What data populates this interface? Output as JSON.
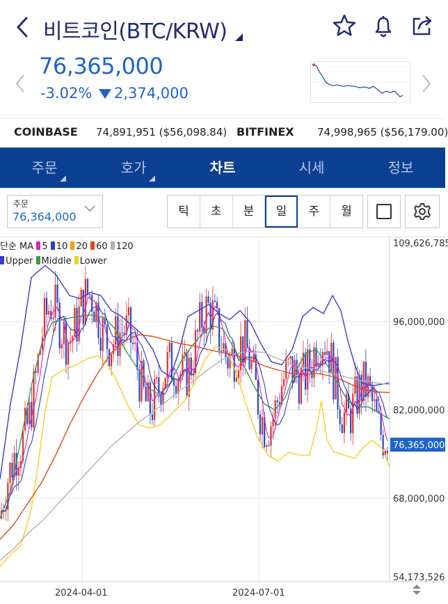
{
  "header": {
    "title": "비트코인(BTC/KRW)",
    "price": "76,365,000",
    "change_pct": "-3.02%",
    "change_amt": "2,374,000"
  },
  "exchanges": [
    {
      "name": "COINBASE",
      "value": "74,891,951 ($56,098.84)"
    },
    {
      "name": "BITFINEX",
      "value": "74,998,965 ($56,179.00)"
    }
  ],
  "tabs": [
    {
      "label": "주문",
      "active": false
    },
    {
      "label": "호가",
      "active": false
    },
    {
      "label": "차트",
      "active": true
    },
    {
      "label": "시세",
      "active": false
    },
    {
      "label": "정보",
      "active": false
    }
  ],
  "order": {
    "label": "주문",
    "value": "76,364,000"
  },
  "periods": [
    "틱",
    "초",
    "분",
    "일",
    "주",
    "월"
  ],
  "selected_period": "일",
  "legend": {
    "ma_title": "단순 MA",
    "ma": [
      {
        "label": "5",
        "color": "#e020c0"
      },
      {
        "label": "10",
        "color": "#2a3dc0"
      },
      {
        "label": "20",
        "color": "#f0a010"
      },
      {
        "label": "60",
        "color": "#e04a1a"
      },
      {
        "label": "120",
        "color": "#b0b0b0"
      }
    ],
    "bb": [
      {
        "label": "Upper",
        "color": "#3a3acc"
      },
      {
        "label": "Middle",
        "color": "#3a9a4a"
      },
      {
        "label": "Lower",
        "color": "#f0d020"
      }
    ]
  },
  "y_axis": [
    "109,626,785",
    "96,000,000",
    "82,000,000",
    "68,000,000",
    "54,173,526"
  ],
  "current_price_tag": "76,365,000",
  "x_axis": [
    "2024-04-01",
    "2024-07-01"
  ],
  "chart_data": {
    "type": "line",
    "x_labels": [
      "2024-04-01",
      "2024-07-01"
    ],
    "ylim": [
      54173526,
      109626785
    ],
    "y_ticks": [
      96000000,
      82000000,
      68000000
    ],
    "last_price": 76365000,
    "series": [
      {
        "name": "Upper",
        "points": [
          [
            0,
            70500000
          ],
          [
            15,
            83000000
          ],
          [
            30,
            92500000
          ],
          [
            45,
            104000000
          ],
          [
            65,
            106000000
          ],
          [
            80,
            104500000
          ],
          [
            100,
            101000000
          ],
          [
            115,
            100500000
          ],
          [
            130,
            101500000
          ],
          [
            145,
            101000000
          ],
          [
            160,
            98500000
          ],
          [
            175,
            97500000
          ],
          [
            190,
            96000000
          ],
          [
            205,
            94500000
          ],
          [
            220,
            92000000
          ],
          [
            232,
            88500000
          ],
          [
            245,
            87500000
          ],
          [
            258,
            92000000
          ],
          [
            270,
            97500000
          ],
          [
            285,
            98500000
          ],
          [
            300,
            99500000
          ],
          [
            315,
            98000000
          ],
          [
            330,
            97000000
          ],
          [
            345,
            98500000
          ],
          [
            360,
            96500000
          ],
          [
            375,
            93000000
          ],
          [
            390,
            90000000
          ],
          [
            405,
            89500000
          ],
          [
            420,
            92000000
          ],
          [
            435,
            97500000
          ],
          [
            450,
            99000000
          ],
          [
            465,
            98000000
          ],
          [
            478,
            101000000
          ],
          [
            490,
            98500000
          ],
          [
            500,
            93500000
          ],
          [
            510,
            89500000
          ],
          [
            520,
            86500000
          ],
          [
            535,
            86000000
          ],
          [
            560,
            86500000
          ]
        ]
      },
      {
        "name": "Middle",
        "points": [
          [
            0,
            64000000
          ],
          [
            15,
            68500000
          ],
          [
            30,
            77000000
          ],
          [
            45,
            86000000
          ],
          [
            60,
            93000000
          ],
          [
            75,
            96500000
          ],
          [
            90,
            97000000
          ],
          [
            110,
            97500000
          ],
          [
            130,
            97800000
          ],
          [
            150,
            97300000
          ],
          [
            165,
            95500000
          ],
          [
            180,
            92000000
          ],
          [
            200,
            88500000
          ],
          [
            215,
            85500000
          ],
          [
            230,
            84500000
          ],
          [
            245,
            86500000
          ],
          [
            260,
            90000000
          ],
          [
            275,
            92500000
          ],
          [
            290,
            94500000
          ],
          [
            305,
            96000000
          ],
          [
            320,
            95500000
          ],
          [
            335,
            92500000
          ],
          [
            350,
            89500000
          ],
          [
            365,
            86000000
          ],
          [
            380,
            83000000
          ],
          [
            395,
            82000000
          ],
          [
            410,
            84000000
          ],
          [
            425,
            88500000
          ],
          [
            440,
            91500000
          ],
          [
            455,
            92000000
          ],
          [
            470,
            89500000
          ],
          [
            485,
            86500000
          ],
          [
            500,
            83500000
          ],
          [
            515,
            82500000
          ],
          [
            530,
            82500000
          ],
          [
            545,
            81500000
          ],
          [
            560,
            80500000
          ]
        ]
      },
      {
        "name": "Lower",
        "points": [
          [
            0,
            56000000
          ],
          [
            15,
            58000000
          ],
          [
            30,
            59500000
          ],
          [
            45,
            65500000
          ],
          [
            55,
            73000000
          ],
          [
            65,
            82000000
          ],
          [
            75,
            87500000
          ],
          [
            90,
            88500000
          ],
          [
            110,
            89500000
          ],
          [
            125,
            90500000
          ],
          [
            140,
            91000000
          ],
          [
            152,
            90000000
          ],
          [
            165,
            87500000
          ],
          [
            185,
            82500000
          ],
          [
            200,
            79500000
          ],
          [
            215,
            79000000
          ],
          [
            230,
            79500000
          ],
          [
            248,
            81500000
          ],
          [
            265,
            83500000
          ],
          [
            280,
            86500000
          ],
          [
            295,
            90500000
          ],
          [
            310,
            92500000
          ],
          [
            325,
            92000000
          ],
          [
            340,
            88000000
          ],
          [
            355,
            82500000
          ],
          [
            370,
            77500000
          ],
          [
            385,
            74500000
          ],
          [
            400,
            73500000
          ],
          [
            415,
            75000000
          ],
          [
            430,
            74500000
          ],
          [
            445,
            74500000
          ],
          [
            455,
            79000000
          ],
          [
            462,
            83500000
          ],
          [
            470,
            77000000
          ],
          [
            480,
            75000000
          ],
          [
            495,
            74500000
          ],
          [
            510,
            74000000
          ],
          [
            520,
            75500000
          ],
          [
            535,
            77000000
          ],
          [
            550,
            75500000
          ],
          [
            560,
            72500000
          ]
        ]
      },
      {
        "name": "60",
        "points": [
          [
            0,
            60500000
          ],
          [
            20,
            63000000
          ],
          [
            40,
            66500000
          ],
          [
            60,
            70000000
          ],
          [
            80,
            74500000
          ],
          [
            100,
            79500000
          ],
          [
            120,
            84000000
          ],
          [
            140,
            88000000
          ],
          [
            160,
            91500000
          ],
          [
            180,
            93500000
          ],
          [
            200,
            94500000
          ],
          [
            220,
            94200000
          ],
          [
            240,
            93600000
          ],
          [
            260,
            93000000
          ],
          [
            280,
            92600000
          ],
          [
            300,
            92000000
          ],
          [
            320,
            91500000
          ],
          [
            340,
            91000000
          ],
          [
            360,
            90300000
          ],
          [
            380,
            89300000
          ],
          [
            400,
            88600000
          ],
          [
            420,
            88000000
          ],
          [
            440,
            88000000
          ],
          [
            460,
            88000000
          ],
          [
            480,
            87500000
          ],
          [
            500,
            86500000
          ],
          [
            520,
            85500000
          ],
          [
            540,
            85000000
          ],
          [
            560,
            84900000
          ]
        ]
      },
      {
        "name": "120",
        "points": [
          [
            0,
            57000000
          ],
          [
            20,
            59000000
          ],
          [
            40,
            61500000
          ],
          [
            60,
            63500000
          ],
          [
            80,
            66000000
          ],
          [
            100,
            68500000
          ],
          [
            120,
            71000000
          ],
          [
            140,
            73500000
          ],
          [
            160,
            76000000
          ],
          [
            180,
            78000000
          ],
          [
            200,
            80000000
          ],
          [
            220,
            81700000
          ],
          [
            240,
            83500000
          ],
          [
            260,
            85300000
          ],
          [
            280,
            87000000
          ],
          [
            300,
            88800000
          ],
          [
            320,
            90400000
          ],
          [
            340,
            91400000
          ],
          [
            360,
            91800000
          ],
          [
            380,
            91500000
          ],
          [
            400,
            90500000
          ],
          [
            420,
            89600000
          ],
          [
            440,
            89000000
          ],
          [
            460,
            88500000
          ],
          [
            480,
            88000000
          ],
          [
            500,
            87400000
          ],
          [
            520,
            86900000
          ],
          [
            540,
            86500000
          ],
          [
            560,
            86200000
          ]
        ]
      }
    ]
  }
}
